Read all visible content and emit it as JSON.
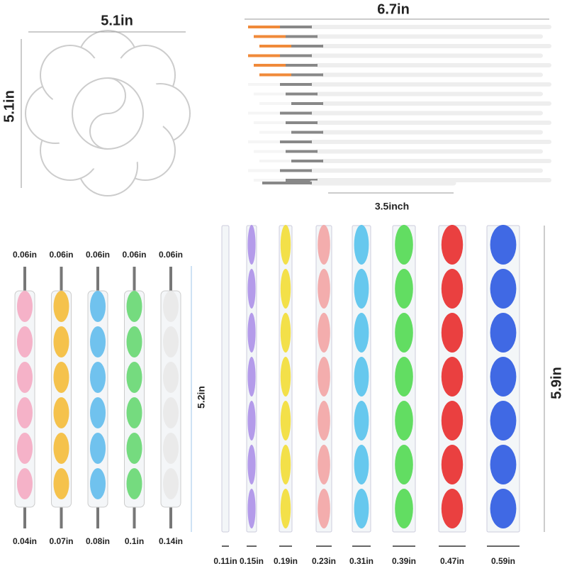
{
  "palette": {
    "width_label": "5.1in",
    "height_label": "5.1in"
  },
  "brushes": {
    "length_label": "6.7in",
    "short_label": "3.5inch"
  },
  "dotting_tools": {
    "top_labels": [
      "0.06in",
      "0.06in",
      "0.06in",
      "0.06in",
      "0.06in"
    ],
    "bottom_labels": [
      "0.04in",
      "0.07in",
      "0.08in",
      "0.1in",
      "0.14in"
    ],
    "length_label": "5.2in"
  },
  "rods": {
    "diameter_labels": [
      "0.11in",
      "0.15in",
      "0.19in",
      "0.23in",
      "0.31in",
      "0.39in",
      "0.47in",
      "0.59in"
    ],
    "length_label": "5.9in"
  }
}
